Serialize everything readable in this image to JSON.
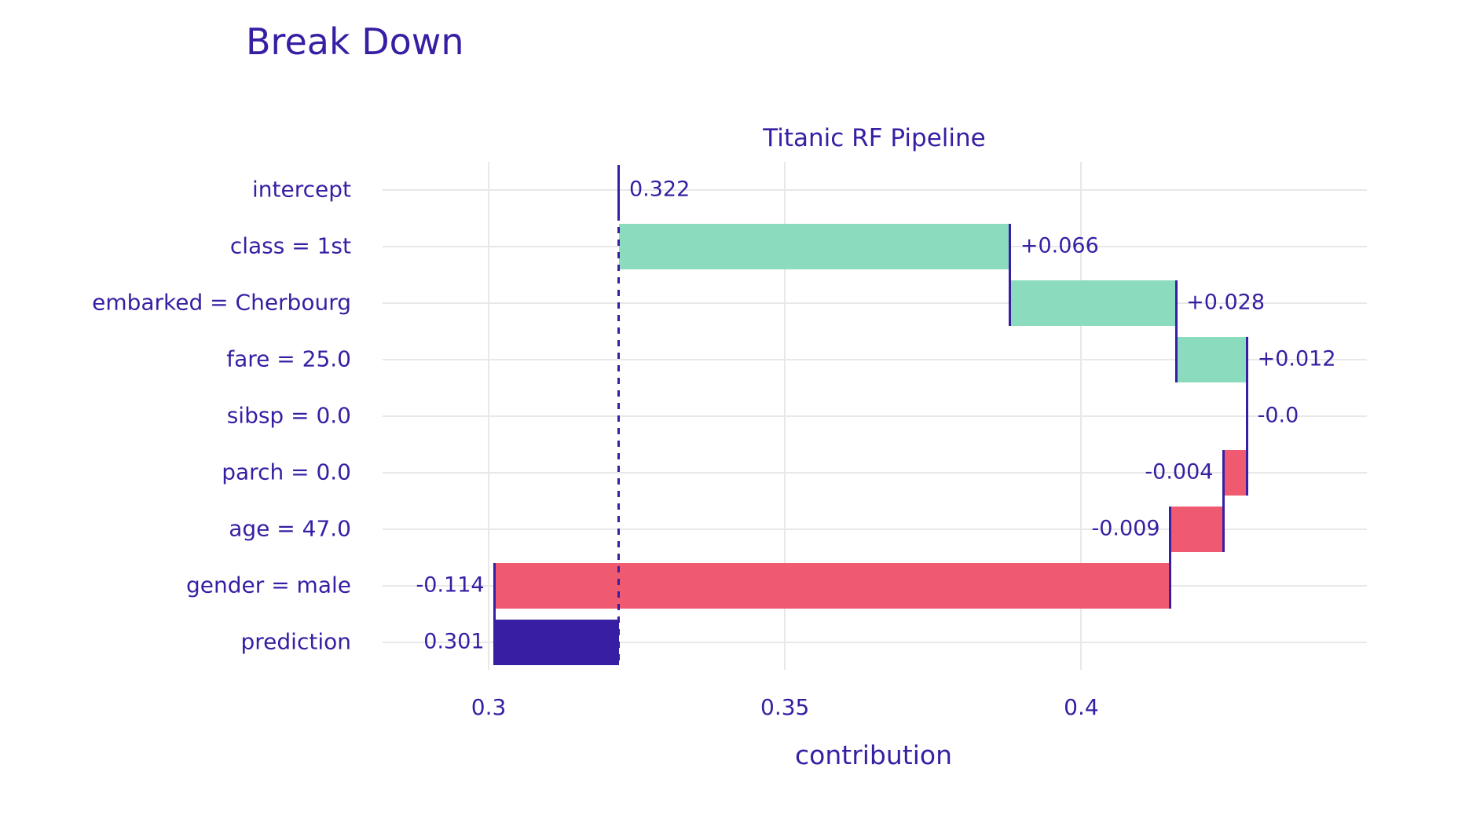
{
  "page": {
    "title": "Break Down",
    "subtitle": "Titanic RF Pipeline",
    "x_axis_label": "contribution"
  },
  "colors": {
    "positive_bar": "#8bdcbe",
    "negative_bar": "#f05a71",
    "prediction_bar": "#371ea3",
    "text": "#371ea3",
    "line": "#371ea3",
    "grid": "#e8e8e8",
    "background": "#ffffff"
  },
  "chart_data": {
    "type": "bar",
    "subtype": "horizontal-waterfall-breakdown",
    "title": "Titanic RF Pipeline",
    "outer_title": "Break Down",
    "xlabel": "contribution",
    "x_range": [
      0.2821,
      0.4482
    ],
    "x_ticks": [
      0.3,
      0.35,
      0.4
    ],
    "x_tick_labels": [
      "0.3",
      "0.35",
      "0.4"
    ],
    "grid": true,
    "intercept": 0.322,
    "prediction": 0.301,
    "rows": [
      {
        "label": "intercept",
        "value": 0.322,
        "value_label": "0.322",
        "kind": "intercept",
        "start": 0.322,
        "end": 0.322,
        "label_side": "right"
      },
      {
        "label": "class = 1st",
        "value": 0.066,
        "value_label": "+0.066",
        "kind": "positive",
        "start": 0.322,
        "end": 0.388,
        "label_side": "right"
      },
      {
        "label": "embarked = Cherbourg",
        "value": 0.028,
        "value_label": "+0.028",
        "kind": "positive",
        "start": 0.388,
        "end": 0.416,
        "label_side": "right"
      },
      {
        "label": "fare = 25.0",
        "value": 0.012,
        "value_label": "+0.012",
        "kind": "positive",
        "start": 0.416,
        "end": 0.428,
        "label_side": "right"
      },
      {
        "label": "sibsp = 0.0",
        "value": -0.0,
        "value_label": "-0.0",
        "kind": "zero",
        "start": 0.428,
        "end": 0.428,
        "label_side": "right"
      },
      {
        "label": "parch = 0.0",
        "value": -0.004,
        "value_label": "-0.004",
        "kind": "negative",
        "start": 0.428,
        "end": 0.424,
        "label_side": "left"
      },
      {
        "label": "age = 47.0",
        "value": -0.009,
        "value_label": "-0.009",
        "kind": "negative",
        "start": 0.424,
        "end": 0.415,
        "label_side": "left"
      },
      {
        "label": "gender = male",
        "value": -0.114,
        "value_label": "-0.114",
        "kind": "negative",
        "start": 0.415,
        "end": 0.301,
        "label_side": "left"
      },
      {
        "label": "prediction",
        "value": 0.301,
        "value_label": "0.301",
        "kind": "prediction",
        "start": 0.322,
        "end": 0.301,
        "label_side": "left"
      }
    ],
    "connectors": [
      {
        "x": 0.388,
        "from_row": 1,
        "to_row": 2
      },
      {
        "x": 0.416,
        "from_row": 2,
        "to_row": 3
      },
      {
        "x": 0.428,
        "from_row": 3,
        "to_row": 5
      },
      {
        "x": 0.424,
        "from_row": 5,
        "to_row": 6
      },
      {
        "x": 0.415,
        "from_row": 6,
        "to_row": 7
      },
      {
        "x": 0.301,
        "from_row": 7,
        "to_row": 8
      }
    ]
  }
}
